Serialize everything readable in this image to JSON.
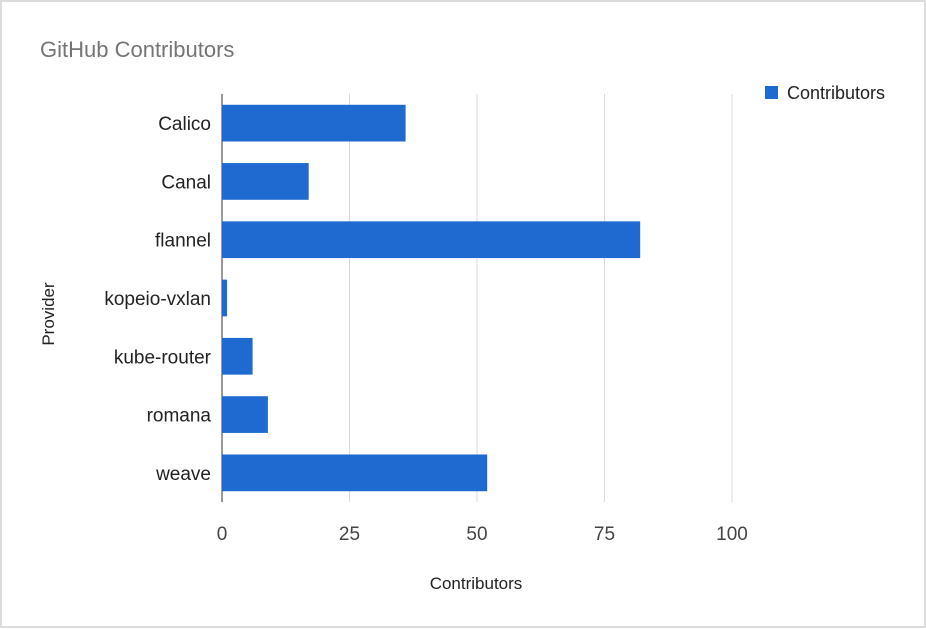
{
  "chart_data": {
    "type": "bar",
    "orientation": "horizontal",
    "title": "GitHub Contributors",
    "xlabel": "Contributors",
    "ylabel": "Provider",
    "categories": [
      "Calico",
      "Canal",
      "flannel",
      "kopeio-vxlan",
      "kube-router",
      "romana",
      "weave"
    ],
    "series": [
      {
        "name": "Contributors",
        "color": "#1f6ad0",
        "values": [
          36,
          17,
          82,
          1,
          6,
          9,
          52
        ]
      }
    ],
    "xlim": [
      0,
      100
    ],
    "xticks": [
      "0",
      "25",
      "50",
      "75",
      "100"
    ],
    "grid": true,
    "legend_position": "top-right"
  }
}
